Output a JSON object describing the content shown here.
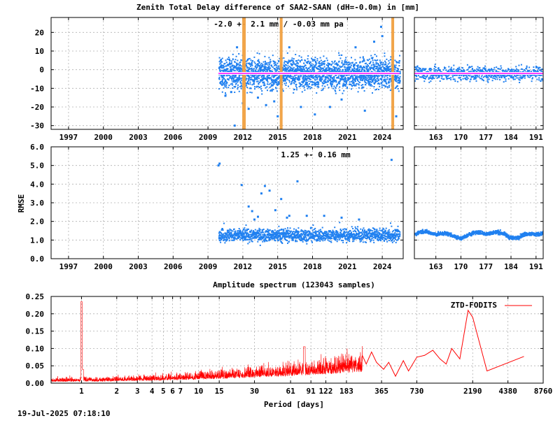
{
  "chart_data": [
    {
      "type": "scatter",
      "panel": "ztd-difference-main",
      "title": "Zenith Total Delay difference of SAA2-SAAN (dH=-0.0m) in [mm]",
      "annotation": "-2.0 +-   2.1 mm / -0.03 mm pa",
      "xlabel": "",
      "ylabel": "",
      "x_tick_labels": [
        "1997",
        "2000",
        "2003",
        "2006",
        "2009",
        "2012",
        "2015",
        "2018",
        "2021",
        "2024"
      ],
      "x_ticks": [
        1997,
        2000,
        2003,
        2006,
        2009,
        2012,
        2015,
        2018,
        2021,
        2024
      ],
      "xlim": [
        1995.5,
        2025.8
      ],
      "y_tick_labels": [
        "-30",
        "-20",
        "-10",
        "0",
        "10",
        "20"
      ],
      "y_ticks": [
        -30,
        -20,
        -10,
        0,
        10,
        20
      ],
      "ylim": [
        -32,
        28
      ],
      "data_start": 2009.9,
      "data_end": 2025.5,
      "mean": -2.0,
      "spread": 2.1,
      "trend_mm_per_year": -0.03,
      "gap_markers": [
        2012.1,
        2015.3,
        2024.9
      ],
      "outliers": [
        [
          2010.5,
          -14
        ],
        [
          2011.0,
          -12
        ],
        [
          2011.5,
          12
        ],
        [
          2012.0,
          -18
        ],
        [
          2012.5,
          -21
        ],
        [
          2013.3,
          -15
        ],
        [
          2014.0,
          -19
        ],
        [
          2014.7,
          -17
        ],
        [
          2015.0,
          -25
        ],
        [
          2016.0,
          12
        ],
        [
          2017.0,
          -20
        ],
        [
          2018.2,
          -24
        ],
        [
          2019.5,
          -20
        ],
        [
          2020.5,
          -16
        ],
        [
          2021.7,
          12
        ],
        [
          2022.5,
          -22
        ],
        [
          2023.3,
          15
        ],
        [
          2023.9,
          23
        ],
        [
          2024.0,
          18
        ],
        [
          2025.2,
          -25
        ],
        [
          2011.3,
          -30
        ]
      ]
    },
    {
      "type": "scatter",
      "panel": "ztd-difference-zoom",
      "x_tick_labels": [
        "163",
        "170",
        "177",
        "184",
        "191"
      ],
      "x_ticks": [
        163,
        170,
        177,
        184,
        191
      ],
      "xlim": [
        157,
        193
      ],
      "ylim": [
        -32,
        28
      ],
      "mean": -2.0
    },
    {
      "type": "scatter",
      "panel": "rmse-main",
      "annotation": "1.25 +-   0.16 mm",
      "ylabel": "RMSE",
      "x_tick_labels": [
        "1997",
        "2000",
        "2003",
        "2006",
        "2009",
        "2012",
        "2015",
        "2018",
        "2021",
        "2024"
      ],
      "x_ticks": [
        1997,
        2000,
        2003,
        2006,
        2009,
        2012,
        2015,
        2018,
        2021,
        2024
      ],
      "xlim": [
        1995.5,
        2025.8
      ],
      "y_tick_labels": [
        "0.0",
        "1.0",
        "2.0",
        "3.0",
        "4.0",
        "5.0",
        "6.0"
      ],
      "y_ticks": [
        0,
        1,
        2,
        3,
        4,
        5,
        6
      ],
      "ylim": [
        0,
        6
      ],
      "data_start": 2009.9,
      "data_end": 2025.5,
      "mean": 1.25,
      "spread": 0.16,
      "outliers": [
        [
          2009.9,
          5.0
        ],
        [
          2010.0,
          5.1
        ],
        [
          2011.9,
          3.95
        ],
        [
          2012.5,
          2.8
        ],
        [
          2012.8,
          2.55
        ],
        [
          2013.0,
          2.1
        ],
        [
          2013.3,
          2.25
        ],
        [
          2013.6,
          3.5
        ],
        [
          2013.9,
          3.9
        ],
        [
          2014.3,
          3.65
        ],
        [
          2014.8,
          2.6
        ],
        [
          2015.3,
          3.2
        ],
        [
          2015.8,
          2.2
        ],
        [
          2016.7,
          4.15
        ],
        [
          2016.0,
          2.3
        ],
        [
          2017.5,
          2.3
        ],
        [
          2019.0,
          2.3
        ],
        [
          2020.5,
          2.2
        ],
        [
          2022.0,
          2.1
        ],
        [
          2024.8,
          5.3
        ]
      ]
    },
    {
      "type": "scatter",
      "panel": "rmse-zoom",
      "x_tick_labels": [
        "163",
        "170",
        "177",
        "184",
        "191"
      ],
      "x_ticks": [
        163,
        170,
        177,
        184,
        191
      ],
      "xlim": [
        157,
        193
      ],
      "ylim": [
        0,
        6
      ],
      "mean": 1.3
    },
    {
      "type": "line",
      "panel": "amplitude-spectrum",
      "title": "Amplitude spectrum (123043 samples)",
      "xlabel": "Period [days]",
      "ylabel": "",
      "legend": "ZTD-FODITS",
      "legend_position": "top-right",
      "x_scale": "log",
      "x_tick_labels": [
        "1",
        "2",
        "3",
        "4",
        "5",
        "6",
        "7",
        "10",
        "15",
        "30",
        "61",
        "91",
        "122",
        "183",
        "365",
        "730",
        "2190",
        "4380",
        "8760"
      ],
      "x_ticks": [
        1,
        2,
        3,
        4,
        5,
        6,
        7,
        10,
        15,
        30,
        61,
        91,
        122,
        183,
        365,
        730,
        2190,
        4380,
        8760
      ],
      "xlim": [
        0.55,
        8760
      ],
      "y_tick_labels": [
        "0.00",
        "0.05",
        "0.10",
        "0.15",
        "0.20",
        "0.25"
      ],
      "y_ticks": [
        0,
        0.05,
        0.1,
        0.15,
        0.2,
        0.25
      ],
      "ylim": [
        0,
        0.25
      ],
      "peaks": [
        [
          1.0,
          0.235
        ],
        [
          1.01,
          0.04
        ],
        [
          80,
          0.105
        ],
        [
          365,
          0.068
        ]
      ],
      "low_freq_points": [
        [
          250,
          0.08
        ],
        [
          270,
          0.055
        ],
        [
          300,
          0.09
        ],
        [
          330,
          0.06
        ],
        [
          380,
          0.04
        ],
        [
          420,
          0.06
        ],
        [
          480,
          0.02
        ],
        [
          560,
          0.065
        ],
        [
          620,
          0.035
        ],
        [
          730,
          0.075
        ],
        [
          850,
          0.08
        ],
        [
          1000,
          0.095
        ],
        [
          1150,
          0.07
        ],
        [
          1300,
          0.055
        ],
        [
          1450,
          0.1
        ],
        [
          1700,
          0.07
        ],
        [
          2000,
          0.21
        ],
        [
          2190,
          0.19
        ],
        [
          2900,
          0.035
        ],
        [
          6000,
          0.077
        ]
      ]
    }
  ],
  "colors": {
    "scatter": "#2080f0",
    "mean_line": "#ff00ff",
    "mean_line_outline": "#ffffff",
    "gap_marker": "#f0a040",
    "spectrum": "#ff0000",
    "grid": "#b0b0b0"
  },
  "footer": {
    "timestamp": "19-Jul-2025 07:18:10"
  }
}
